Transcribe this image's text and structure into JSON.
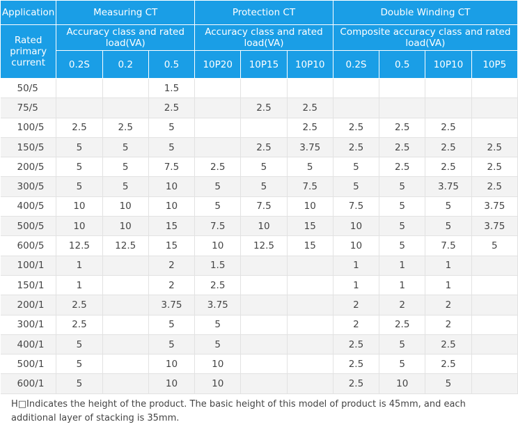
{
  "header": {
    "application": "Application",
    "measuring": "Measuring CT",
    "protection": "Protection CT",
    "double": "Double Winding CT",
    "rated_primary_current": "Rated primary current",
    "accuracy_measuring": "Accuracy class and rated load(VA)",
    "accuracy_protection": "Accuracy class and rated load(VA)",
    "accuracy_double": "Composite accuracy class and rated load(VA)",
    "classes": [
      "0.2S",
      "0.2",
      "0.5",
      "10P20",
      "10P15",
      "10P10",
      "0.2S",
      "0.5",
      "10P10",
      "10P5"
    ]
  },
  "rows": [
    [
      "50/5",
      "",
      "",
      "1.5",
      "",
      "",
      "",
      "",
      "",
      "",
      ""
    ],
    [
      "75/5",
      "",
      "",
      "2.5",
      "",
      "2.5",
      "2.5",
      "",
      "",
      "",
      ""
    ],
    [
      "100/5",
      "2.5",
      "2.5",
      "5",
      "",
      "",
      "2.5",
      "2.5",
      "2.5",
      "2.5",
      ""
    ],
    [
      "150/5",
      "5",
      "5",
      "5",
      "",
      "2.5",
      "3.75",
      "2.5",
      "2.5",
      "2.5",
      "2.5"
    ],
    [
      "200/5",
      "5",
      "5",
      "7.5",
      "2.5",
      "5",
      "5",
      "5",
      "2.5",
      "2.5",
      "2.5"
    ],
    [
      "300/5",
      "5",
      "5",
      "10",
      "5",
      "5",
      "7.5",
      "5",
      "5",
      "3.75",
      "2.5"
    ],
    [
      "400/5",
      "10",
      "10",
      "10",
      "5",
      "7.5",
      "10",
      "7.5",
      "5",
      "5",
      "3.75"
    ],
    [
      "500/5",
      "10",
      "10",
      "15",
      "7.5",
      "10",
      "15",
      "10",
      "5",
      "5",
      "3.75"
    ],
    [
      "600/5",
      "12.5",
      "12.5",
      "15",
      "10",
      "12.5",
      "15",
      "10",
      "5",
      "7.5",
      "5"
    ],
    [
      "100/1",
      "1",
      "",
      "2",
      "1.5",
      "",
      "",
      "1",
      "1",
      "1",
      ""
    ],
    [
      "150/1",
      "1",
      "",
      "2",
      "2.5",
      "",
      "",
      "1",
      "1",
      "1",
      ""
    ],
    [
      "200/1",
      "2.5",
      "",
      "3.75",
      "3.75",
      "",
      "",
      "2",
      "2",
      "2",
      ""
    ],
    [
      "300/1",
      "2.5",
      "",
      "5",
      "5",
      "",
      "",
      "2",
      "2.5",
      "2",
      ""
    ],
    [
      "400/1",
      "5",
      "",
      "5",
      "5",
      "",
      "",
      "2.5",
      "5",
      "2.5",
      ""
    ],
    [
      "500/1",
      "5",
      "",
      "10",
      "10",
      "",
      "",
      "2.5",
      "5",
      "2.5",
      ""
    ],
    [
      "600/1",
      "5",
      "",
      "10",
      "10",
      "",
      "",
      "2.5",
      "10",
      "5",
      ""
    ]
  ],
  "note": "H□Indicates the height of the product. The basic height of this model of product is 45mm, and each additional layer of stacking is 35mm.",
  "colors": {
    "header_bg": "#1a9ee6",
    "header_text": "#ffffff",
    "stripe": "#f3f3f3"
  }
}
